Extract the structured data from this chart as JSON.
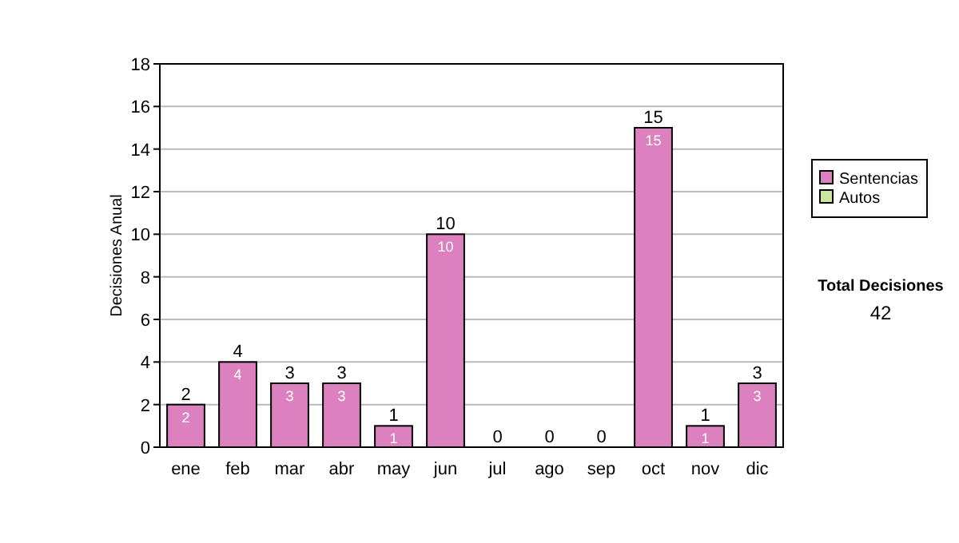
{
  "chart_data": {
    "type": "bar",
    "ylabel": "Decisiones Anual",
    "categories": [
      "ene",
      "feb",
      "mar",
      "abr",
      "may",
      "jun",
      "jul",
      "ago",
      "sep",
      "oct",
      "nov",
      "dic"
    ],
    "series": [
      {
        "name": "Sentencias",
        "color": "#dd80c0",
        "values": [
          2,
          4,
          3,
          3,
          1,
          10,
          0,
          0,
          0,
          15,
          1,
          3
        ],
        "value_labels": [
          "2",
          "4",
          "3",
          "3",
          "1",
          "10",
          null,
          null,
          null,
          "15",
          "1",
          "3"
        ]
      },
      {
        "name": "Autos",
        "color": "#cce89a",
        "values": [
          0,
          0,
          0,
          0,
          0,
          0,
          0,
          0,
          0,
          0,
          0,
          0
        ]
      }
    ],
    "totals": [
      "2",
      "4",
      "3",
      "3",
      "1",
      "10",
      "0",
      "0",
      "0",
      "15",
      "1",
      "3"
    ],
    "ylim": [
      0,
      18
    ],
    "yticks": [
      0,
      2,
      4,
      6,
      8,
      10,
      12,
      14,
      16,
      18
    ],
    "grid": "y",
    "legend": "right",
    "annotations": [
      "Total Decisiones",
      "42"
    ]
  }
}
